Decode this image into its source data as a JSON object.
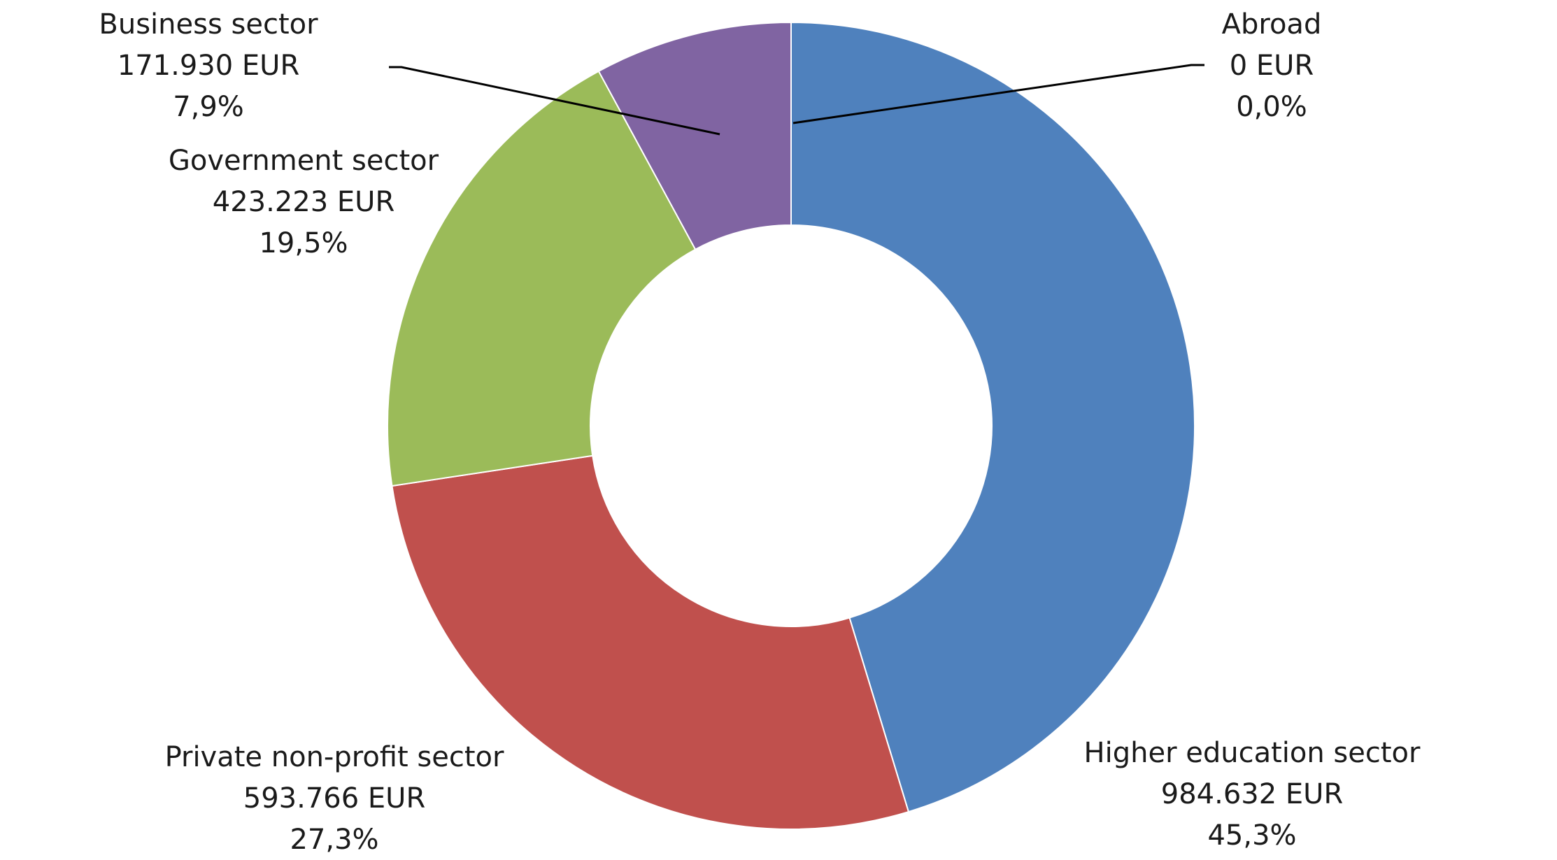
{
  "chart_data": {
    "type": "pie",
    "variant": "donut",
    "title": "",
    "unit": "EUR",
    "legend": "none",
    "slices": [
      {
        "name": "Abroad",
        "value": 0,
        "value_label": "0 EUR",
        "percent_label": "0,0%",
        "color": "#4F81BD"
      },
      {
        "name": "Higher education sector",
        "value": 984632,
        "value_label": "984.632 EUR",
        "percent_label": "45,3%",
        "color": "#4F81BD"
      },
      {
        "name": "Private non-profit sector",
        "value": 593766,
        "value_label": "593.766 EUR",
        "percent_label": "27,3%",
        "color": "#C0504D"
      },
      {
        "name": "Government sector",
        "value": 423223,
        "value_label": "423.223 EUR",
        "percent_label": "19,5%",
        "color": "#9BBB59"
      },
      {
        "name": "Business sector",
        "value": 171930,
        "value_label": "171.930 EUR",
        "percent_label": "7,9%",
        "color": "#8064A2"
      }
    ]
  }
}
